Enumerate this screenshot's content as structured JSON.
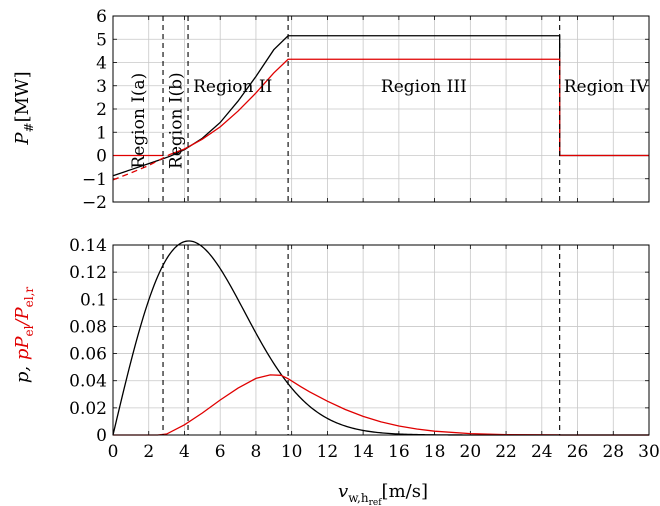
{
  "chart_data": [
    {
      "type": "line",
      "ylabel_var": "P",
      "ylabel_sub": "#",
      "ylabel_unit": "[MW]",
      "xlim": [
        0,
        30
      ],
      "ylim": [
        -2,
        6
      ],
      "yticks": [
        "−2",
        "−1",
        "0",
        "1",
        "2",
        "3",
        "4",
        "5",
        "6"
      ],
      "ytick_values": [
        -2,
        -1,
        0,
        1,
        2,
        3,
        4,
        5,
        6
      ],
      "xticks": [
        0,
        2,
        4,
        6,
        8,
        10,
        12,
        14,
        16,
        18,
        20,
        22,
        24,
        26,
        28,
        30
      ],
      "grid": true,
      "region_boundaries": [
        2.8,
        4.2,
        9.8,
        25
      ],
      "region_labels": [
        {
          "text": "Region I(a)",
          "x": 1.4,
          "y": 1.5,
          "rotated": true
        },
        {
          "text": "Region I(b)",
          "x": 3.5,
          "y": 1.5,
          "rotated": true
        },
        {
          "text": "Region II",
          "x": 6.7,
          "y": 3.0,
          "rotated": false
        },
        {
          "text": "Region III",
          "x": 17.4,
          "y": 3.0,
          "rotated": false
        },
        {
          "text": "Region IV",
          "x": 27.6,
          "y": 3.0,
          "rotated": false
        }
      ],
      "series": [
        {
          "color": "#000000",
          "x": [
            0,
            1,
            2,
            2.8,
            3.2,
            4.0,
            5.0,
            6.0,
            7.0,
            8.0,
            9.0,
            9.8,
            9.8,
            25,
            25,
            30
          ],
          "values": [
            -0.87,
            -0.61,
            -0.35,
            -0.14,
            -0.03,
            0.25,
            0.74,
            1.42,
            2.34,
            3.4,
            4.55,
            5.15,
            5.15,
            5.15,
            0.0,
            0.0
          ]
        },
        {
          "color": "#e00000",
          "x": [
            3.2,
            4.0,
            5.0,
            6.0,
            7.0,
            8.0,
            9.0,
            9.8,
            9.8,
            25,
            25,
            30
          ],
          "values": [
            0.05,
            0.28,
            0.7,
            1.23,
            1.91,
            2.69,
            3.55,
            4.14,
            4.14,
            4.14,
            0.0,
            0.0
          ]
        },
        {
          "color": "#e00000",
          "dashed": true,
          "x": [
            0,
            1,
            2,
            3.2
          ],
          "values": [
            -1.05,
            -0.75,
            -0.43,
            0.05
          ]
        },
        {
          "color": "#e00000",
          "x": [
            0,
            2.8
          ],
          "values": [
            0.0,
            0.0
          ]
        }
      ]
    },
    {
      "type": "line",
      "ylabel_black": "p,",
      "ylabel_red": "pP",
      "ylabel_red_sub": "el",
      "ylabel_red_mid": "/P",
      "ylabel_red_sub2": "el,r",
      "xlabel_var": "v",
      "xlabel_sub": "w,h",
      "xlabel_subsub": "ref",
      "xlabel_unit": "[m/s]",
      "xlim": [
        0,
        30
      ],
      "ylim": [
        0,
        0.14
      ],
      "yticks": [
        "0",
        "0.02",
        "0.04",
        "0.06",
        "0.08",
        "0.1",
        "0.12",
        "0.14"
      ],
      "ytick_values": [
        0,
        0.02,
        0.04,
        0.06,
        0.08,
        0.1,
        0.12,
        0.14
      ],
      "xticks": [
        0,
        2,
        4,
        6,
        8,
        10,
        12,
        14,
        16,
        18,
        20,
        22,
        24,
        26,
        28,
        30
      ],
      "grid": true,
      "region_boundaries": [
        2.8,
        4.2,
        9.8,
        25
      ],
      "series": [
        {
          "color": "#000000",
          "weibull": {
            "k": 2,
            "c": 6.0
          },
          "x_range": [
            0,
            30
          ]
        },
        {
          "color": "#e00000",
          "x": [
            0,
            2.5,
            3,
            4,
            5,
            6,
            7,
            8,
            8.8,
            9.4,
            9.8,
            10.5,
            11,
            12,
            13,
            14,
            15,
            16,
            17,
            18,
            20,
            22,
            25,
            25,
            30
          ],
          "values": [
            0,
            0,
            0.0007,
            0.0075,
            0.0162,
            0.0258,
            0.0346,
            0.0417,
            0.0443,
            0.044,
            0.0415,
            0.0357,
            0.0318,
            0.0249,
            0.0188,
            0.0137,
            0.0097,
            0.0066,
            0.0044,
            0.0028,
            0.001,
            0.0003,
            0.0001,
            0,
            0
          ]
        }
      ]
    }
  ]
}
